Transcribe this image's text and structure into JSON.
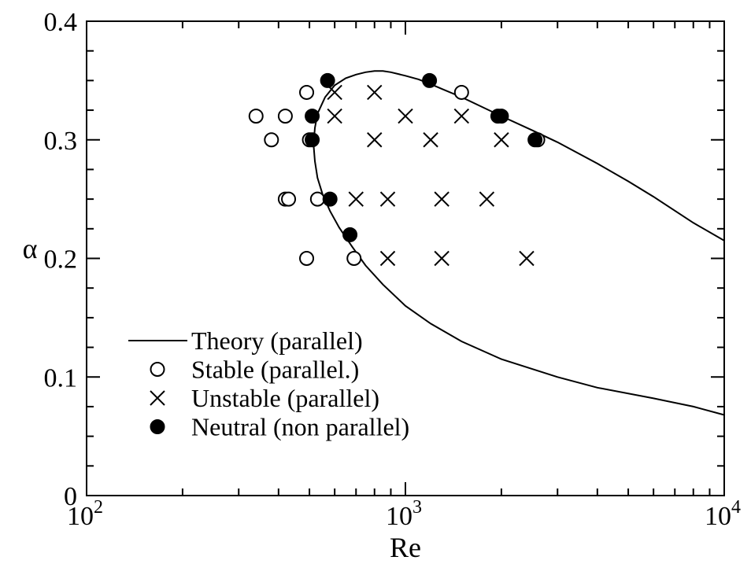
{
  "chart_data": {
    "type": "scatter",
    "title": "",
    "xlabel": "Re",
    "ylabel": "α",
    "x_scale": "log",
    "xlim": [
      100,
      10000
    ],
    "ylim": [
      0,
      0.4
    ],
    "x_ticks": [
      {
        "value": 100,
        "base": "10",
        "exp": "2"
      },
      {
        "value": 1000,
        "base": "10",
        "exp": "3"
      },
      {
        "value": 10000,
        "base": "10",
        "exp": "4"
      }
    ],
    "y_ticks": [
      {
        "value": 0,
        "label": "0"
      },
      {
        "value": 0.1,
        "label": "0.1"
      },
      {
        "value": 0.2,
        "label": "0.2"
      },
      {
        "value": 0.3,
        "label": "0.3"
      },
      {
        "value": 0.4,
        "label": "0.4"
      }
    ],
    "grid": false,
    "legend_position": "bottom-left",
    "series": [
      {
        "name": "Theory (parallel)",
        "marker": "line",
        "x": [
          10000,
          8000,
          6000,
          5000,
          4000,
          3000,
          2500,
          2000,
          1700,
          1500,
          1300,
          1200,
          1100,
          1000,
          900,
          850,
          800,
          750,
          700,
          650,
          600,
          560,
          530,
          520,
          515,
          520,
          530,
          550,
          580,
          620,
          680,
          750,
          850,
          1000,
          1200,
          1500,
          2000,
          3000,
          4000,
          6000,
          8000,
          10000
        ],
        "y": [
          0.215,
          0.23,
          0.252,
          0.265,
          0.28,
          0.298,
          0.308,
          0.32,
          0.329,
          0.336,
          0.343,
          0.347,
          0.351,
          0.354,
          0.357,
          0.358,
          0.358,
          0.357,
          0.355,
          0.352,
          0.346,
          0.336,
          0.322,
          0.31,
          0.296,
          0.282,
          0.268,
          0.254,
          0.24,
          0.226,
          0.21,
          0.194,
          0.178,
          0.16,
          0.145,
          0.13,
          0.115,
          0.1,
          0.091,
          0.082,
          0.075,
          0.068
        ]
      },
      {
        "name": "Stable (parallel.)",
        "marker": "open-circle",
        "x": [
          340,
          380,
          420,
          490,
          420,
          500,
          430,
          530,
          490,
          690,
          1500,
          2600
        ],
        "y": [
          0.32,
          0.3,
          0.32,
          0.34,
          0.25,
          0.3,
          0.25,
          0.25,
          0.2,
          0.2,
          0.34,
          0.3
        ]
      },
      {
        "name": "Unstable (parallel)",
        "marker": "cross",
        "x": [
          600,
          800,
          600,
          1000,
          1500,
          800,
          1200,
          2000,
          700,
          880,
          1300,
          1800,
          880,
          1300,
          2400
        ],
        "y": [
          0.34,
          0.34,
          0.32,
          0.32,
          0.32,
          0.3,
          0.3,
          0.3,
          0.25,
          0.25,
          0.25,
          0.25,
          0.2,
          0.2,
          0.2
        ]
      },
      {
        "name": "Neutral (non parallel)",
        "marker": "filled-circle",
        "x": [
          570,
          1190,
          510,
          510,
          1950,
          2000,
          2550,
          580,
          670
        ],
        "y": [
          0.35,
          0.35,
          0.32,
          0.3,
          0.32,
          0.32,
          0.3,
          0.25,
          0.22
        ]
      }
    ]
  }
}
